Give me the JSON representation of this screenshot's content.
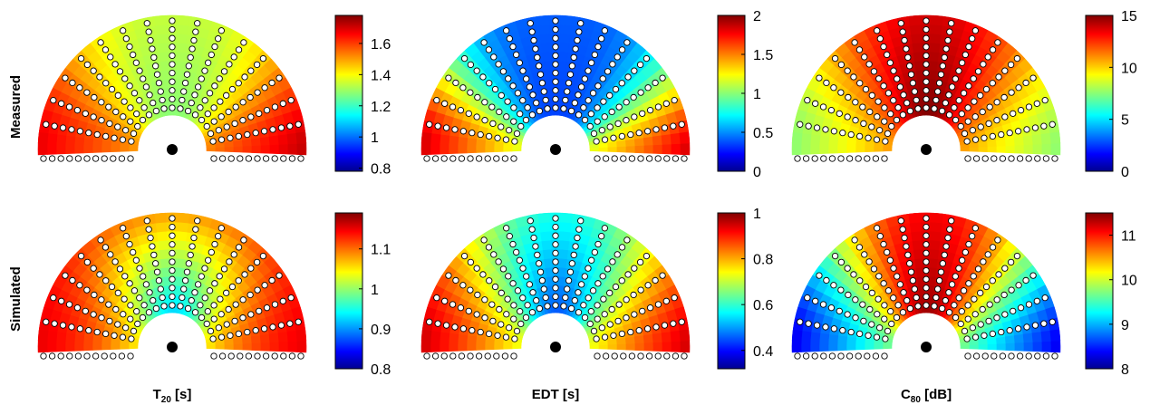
{
  "rows": [
    "Measured",
    "Simulated"
  ],
  "columns": [
    {
      "main": "T",
      "sub": "20",
      "unit": " [s]"
    },
    {
      "main": "EDT [s]",
      "sub": "",
      "unit": ""
    },
    {
      "main": "C",
      "sub": "80",
      "unit": " [dB]"
    }
  ],
  "colormap": [
    "#00008f",
    "#0000ff",
    "#00ffff",
    "#ffff00",
    "#ff0000",
    "#800000"
  ],
  "chart_data": [
    {
      "type": "heatmap",
      "row": "Measured",
      "column": "T20 [s]",
      "clim": [
        0.78,
        1.78
      ],
      "tick_labels": [
        "0.8",
        "1",
        "1.2",
        "1.4",
        "1.6"
      ],
      "tick_values": [
        0.8,
        1.0,
        1.2,
        1.4,
        1.6
      ],
      "field": {
        "edge_left": 1.68,
        "edge_right": 1.72,
        "mid": 1.28,
        "top": 1.34,
        "angle_exp": 3.0
      }
    },
    {
      "type": "heatmap",
      "row": "Measured",
      "column": "EDT [s]",
      "clim": [
        0,
        2
      ],
      "tick_labels": [
        "0",
        "0.5",
        "1",
        "1.5",
        "2"
      ],
      "tick_values": [
        0,
        0.5,
        1.0,
        1.5,
        2.0
      ],
      "field": {
        "edge_left": 1.85,
        "edge_right": 1.85,
        "mid": 0.35,
        "top": 0.4,
        "angle_exp": 4.0
      }
    },
    {
      "type": "heatmap",
      "row": "Measured",
      "column": "C80 [dB]",
      "clim": [
        0,
        15
      ],
      "tick_labels": [
        "0",
        "5",
        "10",
        "15"
      ],
      "tick_values": [
        0,
        5,
        10,
        15
      ],
      "field": {
        "edge_left": 7.5,
        "edge_right": 7.5,
        "mid": 15.0,
        "top": 13.8,
        "angle_exp": 2.0
      }
    },
    {
      "type": "heatmap",
      "row": "Simulated",
      "column": "T20 [s]",
      "clim": [
        0.8,
        1.19
      ],
      "tick_labels": [
        "0.8",
        "0.9",
        "1",
        "1.1"
      ],
      "tick_values": [
        0.8,
        0.9,
        1.0,
        1.1
      ],
      "field": {
        "edge_left": 1.15,
        "edge_right": 1.15,
        "mid": 0.92,
        "top": 1.08,
        "angle_exp": 1.8
      }
    },
    {
      "type": "heatmap",
      "row": "Simulated",
      "column": "EDT [s]",
      "clim": [
        0.32,
        1.0
      ],
      "tick_labels": [
        "0.4",
        "0.6",
        "0.8",
        "1"
      ],
      "tick_values": [
        0.4,
        0.6,
        0.8,
        1.0
      ],
      "field": {
        "edge_left": 0.95,
        "edge_right": 0.95,
        "mid": 0.45,
        "top": 0.58,
        "angle_exp": 2.0
      }
    },
    {
      "type": "heatmap",
      "row": "Simulated",
      "column": "C80 [dB]",
      "clim": [
        8,
        11.5
      ],
      "tick_labels": [
        "8",
        "9",
        "10",
        "11"
      ],
      "tick_values": [
        8,
        9,
        10,
        11
      ],
      "field": {
        "edge_left": 8.3,
        "edge_right": 8.3,
        "mid": 11.4,
        "top": 11.1,
        "angle_exp": 2.2
      }
    }
  ]
}
